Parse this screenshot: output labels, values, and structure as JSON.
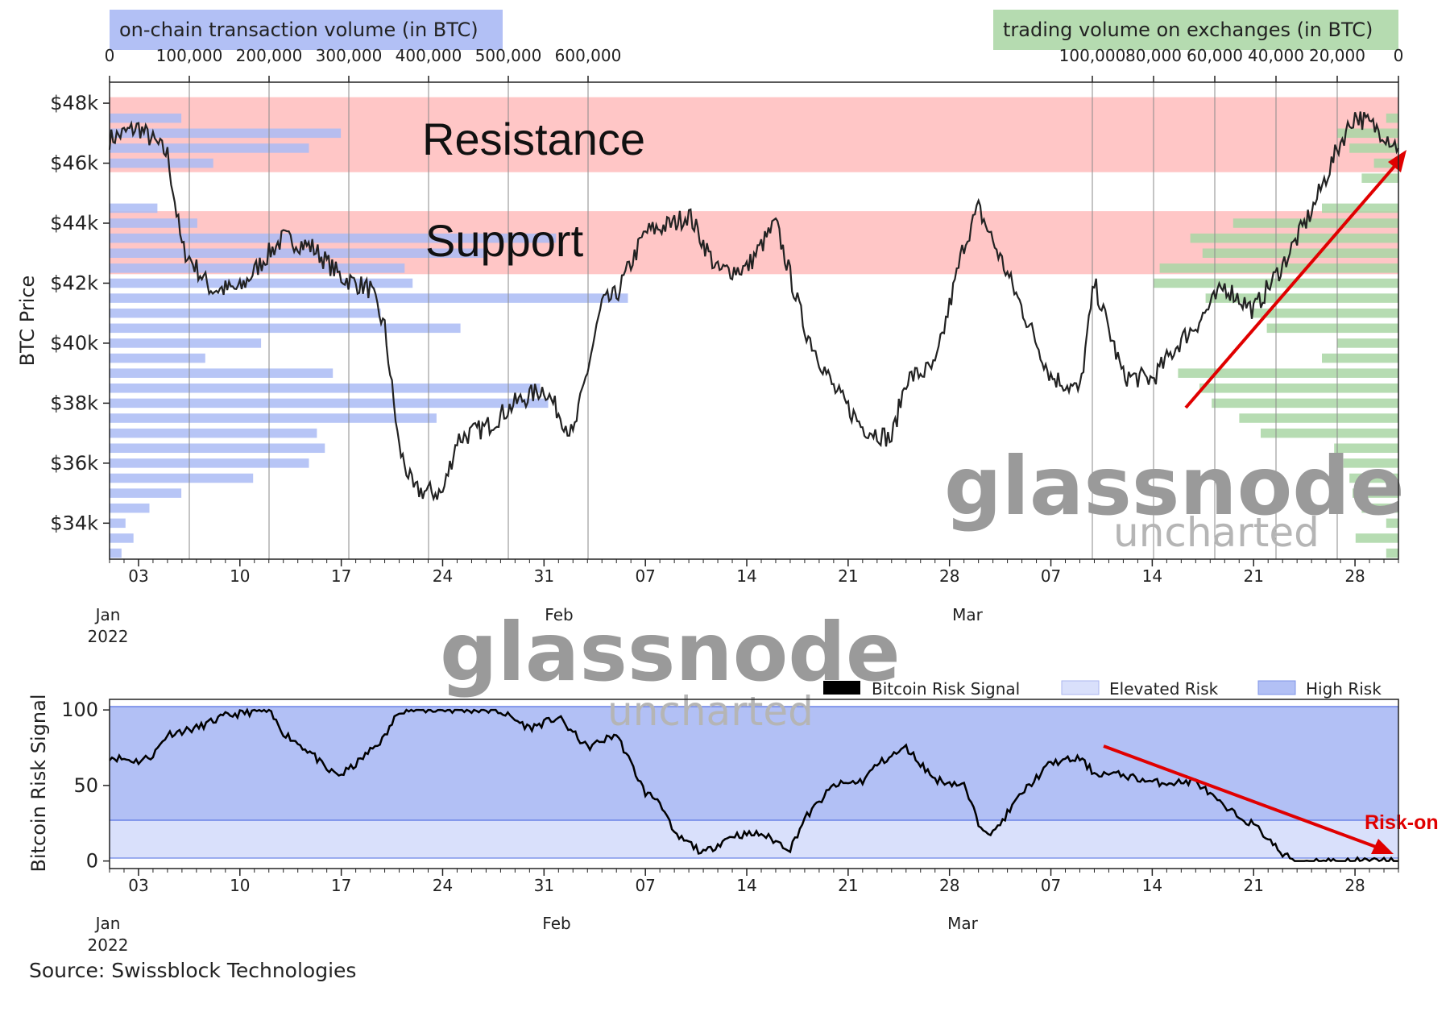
{
  "colors": {
    "onchain": "#aabbf5",
    "exchange": "#a9d6a4",
    "band": "#ffc6c6",
    "price_line": "#222222",
    "risk_high": "#b2c0f5",
    "risk_elevated": "#d9e0fb",
    "arrow": "#e00000"
  },
  "top_chart": {
    "onchain_label": "on-chain transaction volume (in BTC)",
    "exchange_label": "trading volume on exchanges (in BTC)",
    "onchain_ticks": [
      "0",
      "100,000",
      "200,000",
      "300,000",
      "400,000",
      "500,000",
      "600,000"
    ],
    "exchange_ticks": [
      "100,000",
      "80,000",
      "60,000",
      "40,000",
      "20,000",
      "0"
    ],
    "ylabel": "BTC Price",
    "y_ticks": [
      "$48k",
      "$46k",
      "$44k",
      "$42k",
      "$40k",
      "$38k",
      "$36k",
      "$34k"
    ],
    "resistance_label": "Resistance",
    "support_label": "Support"
  },
  "x_axis": {
    "day_ticks": [
      "03",
      "10",
      "17",
      "24",
      "31",
      "07",
      "14",
      "21",
      "28",
      "07",
      "14",
      "21",
      "28"
    ],
    "month_labels": [
      "Jan\n2022",
      "Feb",
      "Mar"
    ],
    "jan_label": "Jan",
    "year_label": "2022",
    "feb_label": "Feb",
    "mar_label": "Mar"
  },
  "bottom_chart": {
    "ylabel": "Bitcoin Risk Signal",
    "y_ticks": [
      "100",
      "50",
      "0"
    ],
    "legend": [
      "Bitcoin Risk Signal",
      "Elevated Risk",
      "High Risk"
    ],
    "annotation": "Risk-on"
  },
  "watermark": {
    "main": "glassnode",
    "sub": "uncharted"
  },
  "source": "Source: Swissblock Technologies",
  "chart_data": [
    {
      "type": "line",
      "title": "",
      "ylabel": "BTC Price",
      "ylim": [
        32800,
        48700
      ],
      "x_range": [
        "2022-01-01",
        "2022-03-31"
      ],
      "bands": [
        {
          "name": "Resistance",
          "from": 45700,
          "to": 48200
        },
        {
          "name": "Support",
          "from": 42300,
          "to": 44400
        }
      ],
      "series": [
        {
          "name": "BTC Price",
          "x": [
            "2022-01-01",
            "2022-01-03",
            "2022-01-05",
            "2022-01-06",
            "2022-01-08",
            "2022-01-10",
            "2022-01-12",
            "2022-01-13",
            "2022-01-15",
            "2022-01-17",
            "2022-01-19",
            "2022-01-20",
            "2022-01-21",
            "2022-01-22",
            "2022-01-24",
            "2022-01-25",
            "2022-01-27",
            "2022-01-29",
            "2022-01-31",
            "2022-02-02",
            "2022-02-04",
            "2022-02-05",
            "2022-02-07",
            "2022-02-09",
            "2022-02-10",
            "2022-02-12",
            "2022-02-14",
            "2022-02-16",
            "2022-02-18",
            "2022-02-20",
            "2022-02-22",
            "2022-02-24",
            "2022-02-25",
            "2022-02-27",
            "2022-03-01",
            "2022-03-02",
            "2022-03-04",
            "2022-03-07",
            "2022-03-09",
            "2022-03-10",
            "2022-03-12",
            "2022-03-14",
            "2022-03-16",
            "2022-03-17",
            "2022-03-19",
            "2022-03-21",
            "2022-03-23",
            "2022-03-25",
            "2022-03-27",
            "2022-03-28",
            "2022-03-30",
            "2022-03-31"
          ],
          "values": [
            46800,
            47200,
            46300,
            43200,
            41800,
            41800,
            43000,
            43500,
            43200,
            42200,
            41800,
            40500,
            36500,
            35100,
            35000,
            36800,
            37200,
            38000,
            38500,
            36900,
            41300,
            41600,
            43700,
            44000,
            44300,
            42400,
            42500,
            44000,
            40500,
            38500,
            37200,
            36800,
            38800,
            39200,
            43300,
            44500,
            42300,
            38900,
            38400,
            42000,
            38900,
            38800,
            40100,
            40600,
            41900,
            41100,
            42600,
            44400,
            46700,
            47600,
            47000,
            46500
          ]
        }
      ],
      "onchain_volume_profile": {
        "name": "on-chain transaction volume (in BTC)",
        "price_levels": [
          47500,
          47000,
          46500,
          46000,
          44500,
          44000,
          43500,
          43000,
          42500,
          42000,
          41500,
          41000,
          40500,
          40000,
          39500,
          39000,
          38500,
          38000,
          37500,
          37000,
          36500,
          36000,
          35500,
          35000,
          34500,
          34000,
          33500,
          33000
        ],
        "values": [
          90000,
          290000,
          250000,
          130000,
          60000,
          110000,
          560000,
          470000,
          370000,
          380000,
          650000,
          340000,
          440000,
          190000,
          120000,
          280000,
          540000,
          550000,
          410000,
          260000,
          270000,
          250000,
          180000,
          90000,
          50000,
          20000,
          30000,
          15000
        ]
      },
      "exchange_volume_profile": {
        "name": "trading volume on exchanges (in BTC)",
        "price_levels": [
          47500,
          47000,
          46500,
          46000,
          45500,
          44500,
          44000,
          43500,
          43000,
          42500,
          42000,
          41500,
          41000,
          40500,
          40000,
          39500,
          39000,
          38500,
          38000,
          37500,
          37000,
          36500,
          36000,
          35500,
          35000,
          34500,
          34000,
          33500,
          33000
        ],
        "values": [
          4000,
          20000,
          16000,
          8000,
          12000,
          25000,
          54000,
          68000,
          64000,
          78000,
          80000,
          63000,
          48000,
          43000,
          20000,
          25000,
          72000,
          65000,
          61000,
          52000,
          45000,
          21000,
          18000,
          16000,
          15000,
          12000,
          4000,
          14000,
          4000
        ]
      }
    },
    {
      "type": "line",
      "title": "",
      "ylabel": "Bitcoin Risk Signal",
      "ylim": [
        -5,
        107
      ],
      "x_range": [
        "2022-01-01",
        "2022-03-31"
      ],
      "bands": [
        {
          "name": "Elevated Risk",
          "from": 0,
          "to": 25
        },
        {
          "name": "High Risk",
          "from": 25,
          "to": 100
        }
      ],
      "legend": "top-right",
      "series": [
        {
          "name": "Bitcoin Risk Signal",
          "x": [
            "2022-01-01",
            "2022-01-03",
            "2022-01-04",
            "2022-01-05",
            "2022-01-07",
            "2022-01-09",
            "2022-01-11",
            "2022-01-12",
            "2022-01-13",
            "2022-01-15",
            "2022-01-16",
            "2022-01-17",
            "2022-01-18",
            "2022-01-20",
            "2022-01-21",
            "2022-01-24",
            "2022-01-27",
            "2022-01-28",
            "2022-01-30",
            "2022-02-01",
            "2022-02-03",
            "2022-02-05",
            "2022-02-07",
            "2022-02-08",
            "2022-02-09",
            "2022-02-10",
            "2022-02-11",
            "2022-02-13",
            "2022-02-15",
            "2022-02-16",
            "2022-02-17",
            "2022-02-18",
            "2022-02-20",
            "2022-02-22",
            "2022-02-23",
            "2022-02-25",
            "2022-02-27",
            "2022-02-28",
            "2022-02-29",
            "2022-03-02",
            "2022-03-03",
            "2022-03-05",
            "2022-03-07",
            "2022-03-09",
            "2022-03-10",
            "2022-03-12",
            "2022-03-14",
            "2022-03-16",
            "2022-03-17",
            "2022-03-19",
            "2022-03-21",
            "2022-03-22",
            "2022-03-23",
            "2022-03-24",
            "2022-03-26",
            "2022-03-28",
            "2022-03-31"
          ],
          "values": [
            69,
            66,
            70,
            84,
            88,
            96,
            99,
            99,
            85,
            71,
            60,
            57,
            64,
            82,
            100,
            100,
            100,
            99,
            88,
            95,
            75,
            84,
            45,
            40,
            17,
            12,
            5,
            17,
            18,
            13,
            8,
            28,
            50,
            53,
            64,
            75,
            54,
            52,
            50,
            25,
            18,
            45,
            65,
            68,
            58,
            57,
            52,
            52,
            53,
            35,
            24,
            15,
            4,
            0,
            0,
            0,
            0
          ]
        }
      ]
    }
  ]
}
